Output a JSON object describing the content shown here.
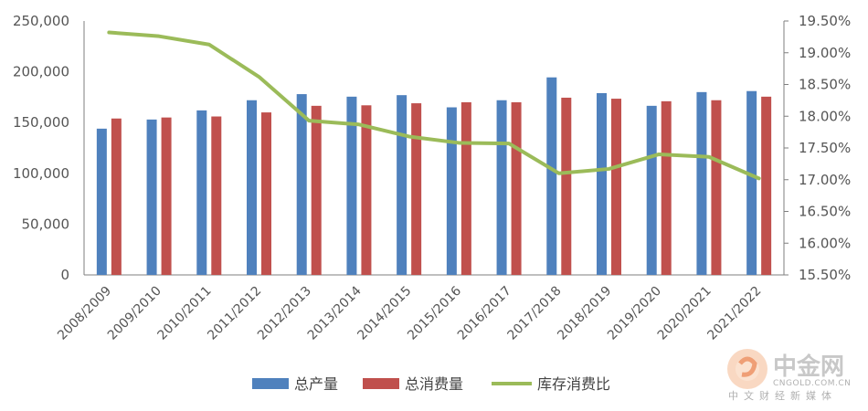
{
  "chart_data": {
    "type": "bar",
    "categories": [
      "2008/2009",
      "2009/2010",
      "2010/2011",
      "2011/2012",
      "2012/2013",
      "2013/2014",
      "2014/2015",
      "2015/2016",
      "2016/2017",
      "2017/2018",
      "2018/2019",
      "2019/2020",
      "2020/2021",
      "2021/2022"
    ],
    "series": [
      {
        "name": "总产量",
        "kind": "bar",
        "axis": "left",
        "color": "#4f81bd",
        "values": [
          144000,
          153000,
          162000,
          172000,
          178000,
          175500,
          177000,
          165000,
          172000,
          194500,
          179000,
          166500,
          180000,
          181000
        ]
      },
      {
        "name": "总消费量",
        "kind": "bar",
        "axis": "left",
        "color": "#c0504d",
        "values": [
          154000,
          155000,
          156000,
          160000,
          166500,
          167000,
          169000,
          170000,
          170000,
          174500,
          173500,
          171000,
          172000,
          175500
        ]
      },
      {
        "name": "库存消费比",
        "kind": "line",
        "axis": "right",
        "color": "#9bbb59",
        "values": [
          19.32,
          19.26,
          19.13,
          18.62,
          17.93,
          17.87,
          17.68,
          17.58,
          17.57,
          17.1,
          17.17,
          17.4,
          17.36,
          17.02
        ]
      }
    ],
    "y_left": {
      "min": 0,
      "max": 250000,
      "step": 50000,
      "tick_labels": [
        "0",
        "50,000",
        "100,000",
        "150,000",
        "200,000",
        "250,000"
      ]
    },
    "y_right": {
      "min": 15.5,
      "max": 19.5,
      "step": 0.5,
      "tick_labels": [
        "15.50%",
        "16.00%",
        "16.50%",
        "17.00%",
        "17.50%",
        "18.00%",
        "18.50%",
        "19.00%",
        "19.50%"
      ]
    },
    "legend_position": "bottom",
    "grid": false
  },
  "watermark": {
    "name": "中金网",
    "url": "CNGOLD.COM.CN",
    "tagline": "中文财经新媒体"
  }
}
